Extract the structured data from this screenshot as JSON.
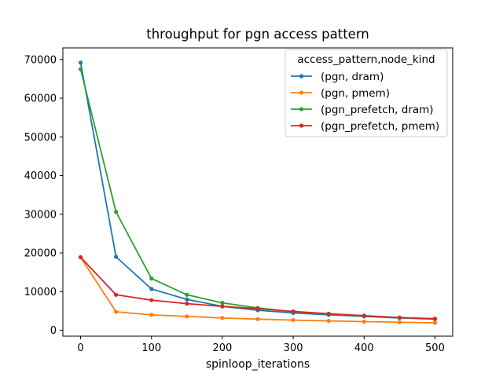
{
  "chart_data": {
    "type": "line",
    "title": "throughput for pgn access pattern",
    "xlabel": "spinloop_iterations",
    "ylabel": "",
    "x": [
      0,
      50,
      100,
      150,
      200,
      250,
      300,
      350,
      400,
      450,
      500
    ],
    "xlim": [
      -25,
      525
    ],
    "ylim": [
      -1500,
      73000
    ],
    "xticks": [
      0,
      100,
      200,
      300,
      400,
      500
    ],
    "yticks": [
      0,
      10000,
      20000,
      30000,
      40000,
      50000,
      60000,
      70000
    ],
    "grid": false,
    "legend": {
      "title": "access_pattern,node_kind",
      "placement": "top-right"
    },
    "series": [
      {
        "name": "(pgn, dram)",
        "color": "#1f77b4",
        "values": [
          69200,
          19000,
          10700,
          8000,
          6200,
          5200,
          4500,
          4000,
          3600,
          3200,
          2900
        ]
      },
      {
        "name": "(pgn, pmem)",
        "color": "#ff7f0e",
        "values": [
          18900,
          4800,
          4000,
          3600,
          3200,
          2900,
          2650,
          2450,
          2250,
          2100,
          1950
        ]
      },
      {
        "name": "(pgn_prefetch, dram)",
        "color": "#2ca02c",
        "values": [
          67500,
          30600,
          13400,
          9200,
          7100,
          5800,
          4800,
          4200,
          3700,
          3300,
          3000
        ]
      },
      {
        "name": "(pgn_prefetch, pmem)",
        "color": "#d62728",
        "values": [
          18900,
          9200,
          7800,
          6900,
          6200,
          5600,
          4900,
          4300,
          3800,
          3300,
          3000
        ]
      }
    ]
  }
}
